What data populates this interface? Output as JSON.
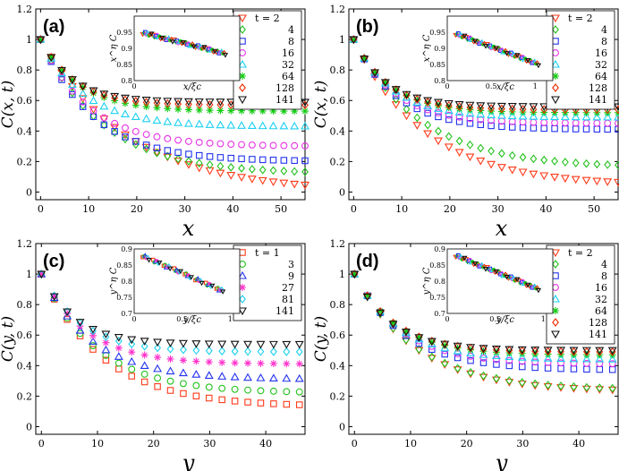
{
  "colors": {
    "t2": "#ff3a1a",
    "t4": "#22c21c",
    "t8": "#2233ee",
    "t16": "#e633e6",
    "t32": "#1ad0f0",
    "t64": "#11cc11",
    "t128": "#ee2a00",
    "t141": "#111111",
    "t1": "#ff3a1a",
    "t3": "#22c21c",
    "t9": "#2233ee",
    "t27": "#ff33cc",
    "t81": "#1ad0f0"
  },
  "chart_data": [
    {
      "panel": "(a)",
      "type": "scatter",
      "xlabel": "x",
      "ylabel": "C(x, t)",
      "xlim": [
        -1,
        55
      ],
      "ylim": [
        -0.05,
        1.2
      ],
      "xticks": [
        "0",
        "10",
        "20",
        "30",
        "40",
        "50"
      ],
      "yticks": [
        "0",
        "0.2",
        "0.4",
        "0.6",
        "0.8",
        "1"
      ],
      "legend_placement": "top-right",
      "legend_title_prefix": "t = ",
      "series": [
        {
          "name": "2",
          "marker": "tri-down",
          "color": "t2",
          "asym": 0.0,
          "tau": 18,
          "p": 1.0
        },
        {
          "name": "4",
          "marker": "diamond",
          "color": "t4",
          "asym": 0.12,
          "tau": 13,
          "p": 1.0
        },
        {
          "name": "8",
          "marker": "square",
          "color": "t8",
          "asym": 0.2,
          "tau": 11,
          "p": 1.0
        },
        {
          "name": "16",
          "marker": "circle",
          "color": "t16",
          "asym": 0.3,
          "tau": 10,
          "p": 1.0
        },
        {
          "name": "32",
          "marker": "tri-up",
          "color": "t32",
          "asym": 0.43,
          "tau": 9,
          "p": 1.0
        },
        {
          "name": "64",
          "marker": "star",
          "color": "t64",
          "asym": 0.53,
          "tau": 8,
          "p": 1.0
        },
        {
          "name": "128",
          "marker": "diamond",
          "color": "t128",
          "asym": 0.57,
          "tau": 7,
          "p": 1.0
        },
        {
          "name": "141",
          "marker": "tri-down",
          "color": "t141",
          "asym": 0.59,
          "tau": 6.5,
          "p": 1.0
        }
      ],
      "x_points": [
        0,
        2.2,
        4.4,
        6.6,
        8.8,
        11,
        13.2,
        15.4,
        17.6,
        19.8,
        22,
        24.2,
        26.4,
        28.6,
        30.8,
        33,
        35.2,
        37.4,
        39.6,
        41.8,
        44,
        46.2,
        48.4,
        50.6,
        52.8,
        55
      ],
      "inset": {
        "xlabel": "x/ξc",
        "ylabel": "x^η C",
        "xlim": [
          0,
          1.5
        ],
        "ylim": [
          0.8,
          1.0
        ],
        "yticks": [
          "0.8",
          "0.85",
          "0.9",
          "0.95"
        ],
        "xticks": [
          "0"
        ],
        "trend": {
          "y0": 0.955,
          "slope": -0.055
        }
      }
    },
    {
      "panel": "(b)",
      "type": "scatter",
      "xlabel": "x",
      "ylabel": "C(x, t)",
      "xlim": [
        -1,
        55
      ],
      "ylim": [
        -0.05,
        1.2
      ],
      "xticks": [
        "0",
        "10",
        "20",
        "30",
        "40",
        "50"
      ],
      "yticks": [
        "0",
        "0.2",
        "0.4",
        "0.6",
        "0.8",
        "1"
      ],
      "legend_placement": "top-right",
      "legend_title_prefix": "t = ",
      "series": [
        {
          "name": "2",
          "marker": "tri-down",
          "color": "t2",
          "asym": 0.04,
          "tau": 15,
          "p": 1.0
        },
        {
          "name": "4",
          "marker": "diamond",
          "color": "t4",
          "asym": 0.16,
          "tau": 14,
          "p": 1.0
        },
        {
          "name": "8",
          "marker": "square",
          "color": "t8",
          "asym": 0.41,
          "tau": 9,
          "p": 1.0
        },
        {
          "name": "16",
          "marker": "circle",
          "color": "t16",
          "asym": 0.45,
          "tau": 8.5,
          "p": 1.0
        },
        {
          "name": "32",
          "marker": "tri-up",
          "color": "t32",
          "asym": 0.49,
          "tau": 8,
          "p": 1.0
        },
        {
          "name": "64",
          "marker": "star",
          "color": "t64",
          "asym": 0.52,
          "tau": 7.5,
          "p": 1.0
        },
        {
          "name": "128",
          "marker": "diamond",
          "color": "t128",
          "asym": 0.54,
          "tau": 7,
          "p": 1.0
        },
        {
          "name": "141",
          "marker": "tri-down",
          "color": "t141",
          "asym": 0.56,
          "tau": 6.5,
          "p": 1.0
        }
      ],
      "x_points": [
        0,
        2.2,
        4.4,
        6.6,
        8.8,
        11,
        13.2,
        15.4,
        17.6,
        19.8,
        22,
        24.2,
        26.4,
        28.6,
        30.8,
        33,
        35.2,
        37.4,
        39.6,
        41.8,
        44,
        46.2,
        48.4,
        50.6,
        52.8,
        55
      ],
      "inset": {
        "xlabel": "x/ξc",
        "ylabel": "x^η C",
        "xlim": [
          0,
          1.2
        ],
        "ylim": [
          0.8,
          1.0
        ],
        "yticks": [
          "0.8",
          "0.85",
          "0.9",
          "0.95"
        ],
        "xticks": [
          "0",
          "0.5",
          "1"
        ],
        "trend": {
          "y0": 0.955,
          "slope": -0.1
        }
      }
    },
    {
      "panel": "(c)",
      "type": "scatter",
      "xlabel": "y",
      "ylabel": "C(y, t)",
      "xlim": [
        -1,
        47
      ],
      "ylim": [
        -0.05,
        1.2
      ],
      "xticks": [
        "0",
        "10",
        "20",
        "30",
        "40"
      ],
      "yticks": [
        "0",
        "0.2",
        "0.4",
        "0.6",
        "0.8",
        "1"
      ],
      "legend_placement": "top-right",
      "legend_title_prefix": "t = ",
      "series": [
        {
          "name": "1",
          "marker": "square",
          "color": "t1",
          "asym": 0.13,
          "tau": 11,
          "p": 1.0
        },
        {
          "name": "3",
          "marker": "circle",
          "color": "t3",
          "asym": 0.22,
          "tau": 10,
          "p": 1.0
        },
        {
          "name": "9",
          "marker": "tri-up",
          "color": "t9",
          "asym": 0.31,
          "tau": 9,
          "p": 1.0
        },
        {
          "name": "27",
          "marker": "star",
          "color": "t27",
          "asym": 0.41,
          "tau": 8,
          "p": 1.0
        },
        {
          "name": "81",
          "marker": "diamond",
          "color": "t81",
          "asym": 0.49,
          "tau": 7,
          "p": 1.0
        },
        {
          "name": "141",
          "marker": "tri-down",
          "color": "t141",
          "asym": 0.54,
          "tau": 6,
          "p": 1.0
        }
      ],
      "x_points": [
        0,
        2.3,
        4.6,
        6.9,
        9.2,
        11.5,
        13.8,
        16.1,
        18.4,
        20.7,
        23,
        25.3,
        27.6,
        29.9,
        32.2,
        34.5,
        36.8,
        39.1,
        41.4,
        43.7,
        46
      ],
      "inset": {
        "xlabel": "y/ξc",
        "ylabel": "y^η C",
        "xlim": [
          0,
          1.1
        ],
        "ylim": [
          0.7,
          0.9
        ],
        "yticks": [
          "0.7",
          "0.75",
          "0.8",
          "0.85",
          "0.9"
        ],
        "xticks": [
          "0",
          "0.5",
          "1"
        ],
        "trend": {
          "y0": 0.89,
          "slope": -0.13
        }
      }
    },
    {
      "panel": "(d)",
      "type": "scatter",
      "xlabel": "y",
      "ylabel": "C(y, t)",
      "xlim": [
        -1,
        47
      ],
      "ylim": [
        -0.05,
        1.2
      ],
      "xticks": [
        "0",
        "10",
        "20",
        "30",
        "40"
      ],
      "yticks": [
        "0",
        "0.2",
        "0.4",
        "0.6",
        "0.8",
        "1"
      ],
      "legend_placement": "top-right",
      "legend_title_prefix": "t = ",
      "series": [
        {
          "name": "2",
          "marker": "tri-down",
          "color": "t2",
          "asym": 0.23,
          "tau": 11,
          "p": 1.0
        },
        {
          "name": "4",
          "marker": "diamond",
          "color": "t4",
          "asym": 0.24,
          "tau": 11,
          "p": 1.0
        },
        {
          "name": "8",
          "marker": "square",
          "color": "t8",
          "asym": 0.37,
          "tau": 9,
          "p": 1.0
        },
        {
          "name": "16",
          "marker": "circle",
          "color": "t16",
          "asym": 0.41,
          "tau": 8.5,
          "p": 1.0
        },
        {
          "name": "32",
          "marker": "tri-up",
          "color": "t32",
          "asym": 0.44,
          "tau": 8,
          "p": 1.0
        },
        {
          "name": "64",
          "marker": "star",
          "color": "t64",
          "asym": 0.47,
          "tau": 7.5,
          "p": 1.0
        },
        {
          "name": "128",
          "marker": "diamond",
          "color": "t128",
          "asym": 0.49,
          "tau": 7,
          "p": 1.0
        },
        {
          "name": "141",
          "marker": "tri-down",
          "color": "t141",
          "asym": 0.5,
          "tau": 6.5,
          "p": 1.0
        }
      ],
      "x_points": [
        0,
        2.3,
        4.6,
        6.9,
        9.2,
        11.5,
        13.8,
        16.1,
        18.4,
        20.7,
        23,
        25.3,
        27.6,
        29.9,
        32.2,
        34.5,
        36.8,
        39.1,
        41.4,
        43.7,
        46
      ],
      "inset": {
        "xlabel": "y/ξc",
        "ylabel": "y^η C",
        "xlim": [
          0,
          1.1
        ],
        "ylim": [
          0.7,
          0.9
        ],
        "yticks": [
          "0.7",
          "0.75",
          "0.8",
          "0.85",
          "0.9"
        ],
        "xticks": [
          "0",
          "0.5",
          "1"
        ],
        "trend": {
          "y0": 0.89,
          "slope": -0.12
        }
      }
    }
  ]
}
